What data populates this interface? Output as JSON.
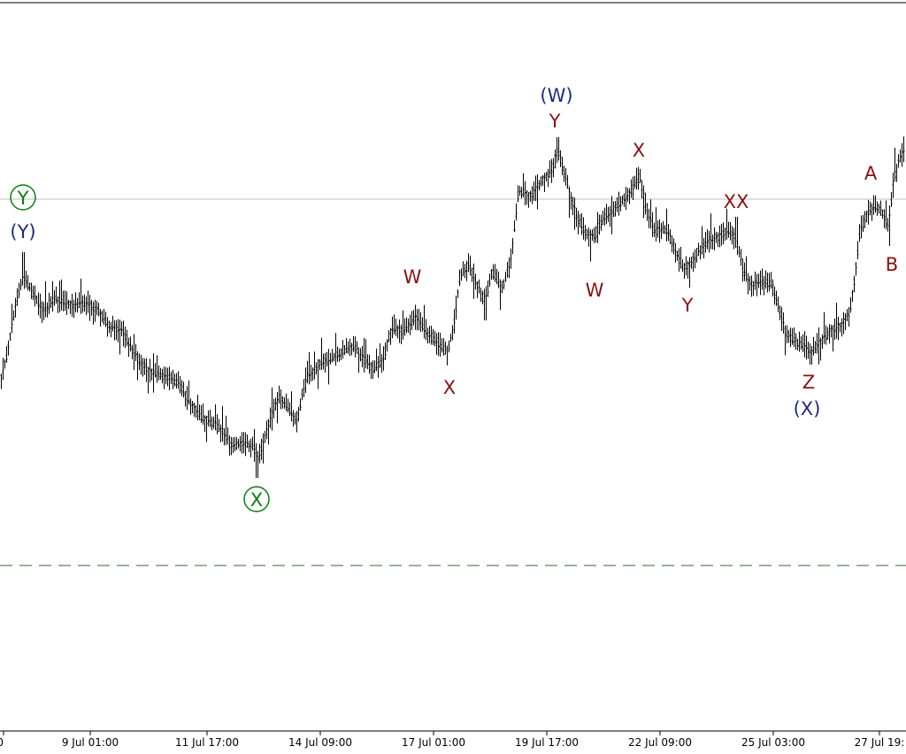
{
  "chart_data": {
    "type": "bar",
    "subtype": "ohlc-price-chart",
    "x_ticks": [
      "0",
      "9 Jul 01:00",
      "11 Jul 17:00",
      "14 Jul 09:00",
      "17 Jul 01:00",
      "19 Jul 17:00",
      "22 Jul 09:00",
      "25 Jul 03:00",
      "27 Jul 19:"
    ],
    "grid": false,
    "reference_line": {
      "style": "solid",
      "color": "#c0c0c0"
    },
    "support_line": {
      "style": "dashed",
      "color": "#2e6e2e"
    },
    "colors": {
      "bars": "#000000",
      "intermediate": "#1f2a7a",
      "minor": "#8b1010",
      "primary": "#0d7a0d"
    },
    "wave_labels": [
      {
        "text": "Y",
        "degree": "primary",
        "circled": true
      },
      {
        "text": "(Y)",
        "degree": "intermediate"
      },
      {
        "text": "X",
        "degree": "primary",
        "circled": true
      },
      {
        "text": "W",
        "degree": "minor"
      },
      {
        "text": "X",
        "degree": "minor"
      },
      {
        "text": "(W)",
        "degree": "intermediate"
      },
      {
        "text": "Y",
        "degree": "minor"
      },
      {
        "text": "W",
        "degree": "minor"
      },
      {
        "text": "X",
        "degree": "minor"
      },
      {
        "text": "Y",
        "degree": "minor"
      },
      {
        "text": "XX",
        "degree": "minor"
      },
      {
        "text": "Z",
        "degree": "minor"
      },
      {
        "text": "(X)",
        "degree": "intermediate"
      },
      {
        "text": "A",
        "degree": "minor"
      },
      {
        "text": "B",
        "degree": "minor"
      }
    ]
  }
}
